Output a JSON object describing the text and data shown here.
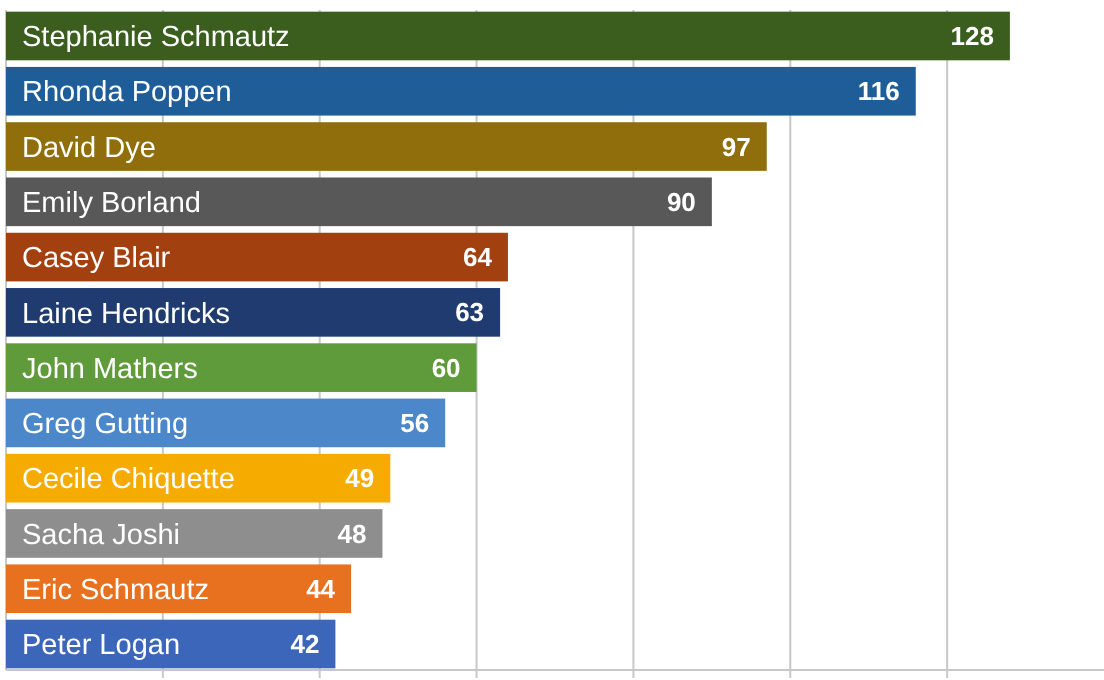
{
  "chart_data": {
    "type": "bar",
    "orientation": "horizontal",
    "categories": [
      "Stephanie Schmautz",
      "Rhonda Poppen",
      "David Dye",
      "Emily Borland",
      "Casey Blair",
      "Laine Hendricks",
      "John Mathers",
      "Greg Gutting",
      "Cecile Chiquette",
      "Sacha Joshi",
      "Eric Schmautz",
      "Peter Logan"
    ],
    "values": [
      128,
      116,
      97,
      90,
      64,
      63,
      60,
      56,
      49,
      48,
      44,
      42
    ],
    "colors": [
      "#3b5e1f",
      "#1f5d99",
      "#8f6e0b",
      "#585858",
      "#a3400f",
      "#1f3b6f",
      "#5f9b3b",
      "#4b87c9",
      "#f6ab00",
      "#8e8e8e",
      "#e8711f",
      "#3b66b9"
    ],
    "xlim": [
      0,
      140
    ],
    "xticks": [
      {
        "value": 20,
        "label": null
      },
      {
        "value": 40,
        "label": null
      },
      {
        "value": 60,
        "label": null
      },
      {
        "value": 80,
        "label": null
      },
      {
        "value": 100,
        "label": null
      },
      {
        "value": 120,
        "label": null
      }
    ],
    "grid": "x",
    "data_labels": true
  }
}
